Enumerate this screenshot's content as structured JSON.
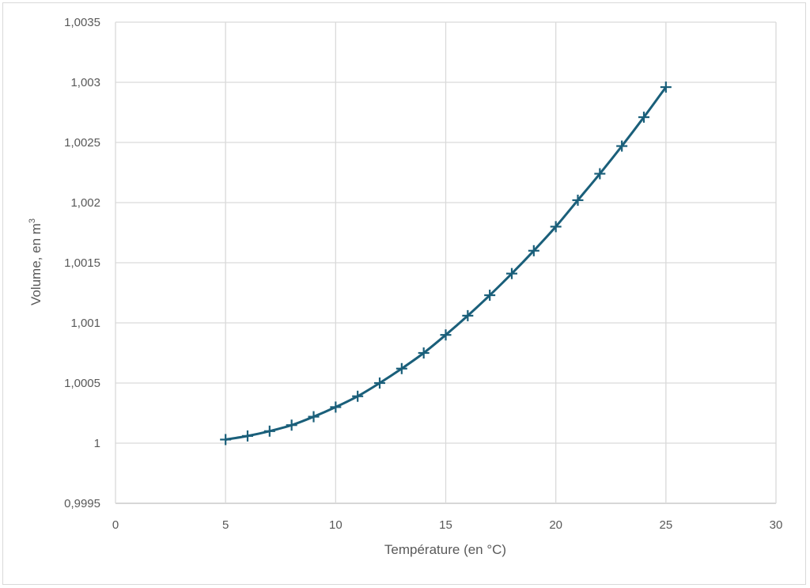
{
  "chart_data": {
    "type": "scatter",
    "title": "",
    "xlabel": "Température (en °C)",
    "ylabel": "Volume, en m",
    "ylabel_superscript": "3",
    "xlim": [
      0,
      30
    ],
    "ylim": [
      0.9995,
      1.0035
    ],
    "x_ticks": [
      "0",
      "5",
      "10",
      "15",
      "20",
      "25",
      "30"
    ],
    "y_ticks": [
      "0,9995",
      "1",
      "1,0005",
      "1,001",
      "1,0015",
      "1,002",
      "1,0025",
      "1,003",
      "1,0035"
    ],
    "grid": true,
    "marker": "plus",
    "line": "smooth",
    "series": [
      {
        "color": "#1a5f7a",
        "x": [
          5,
          6,
          7,
          8,
          9,
          10,
          11,
          12,
          13,
          14,
          15,
          16,
          17,
          18,
          19,
          20,
          21,
          22,
          23,
          24,
          25
        ],
        "y": [
          1.00003,
          1.00006,
          1.0001,
          1.00015,
          1.00022,
          1.0003,
          1.00039,
          1.0005,
          1.00062,
          1.00075,
          1.0009,
          1.00106,
          1.00123,
          1.00141,
          1.0016,
          1.0018,
          1.00202,
          1.00224,
          1.00247,
          1.00271,
          1.00296
        ]
      }
    ]
  }
}
